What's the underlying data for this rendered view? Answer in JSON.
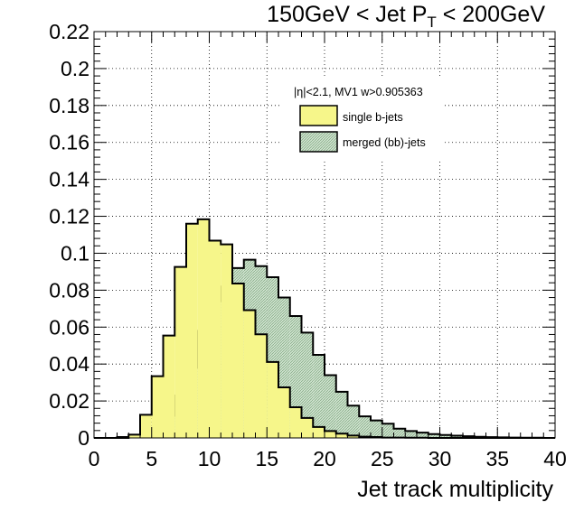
{
  "chart_data": {
    "type": "bar",
    "title": {
      "prefix": "150GeV < Jet P",
      "subscript": "T",
      "suffix": " < 200GeV"
    },
    "xlabel": "Jet track multiplicity",
    "ylabel": "",
    "xlim": [
      0,
      40
    ],
    "ylim": [
      0,
      0.22
    ],
    "xticks": [
      0,
      5,
      10,
      15,
      20,
      25,
      30,
      35,
      40
    ],
    "yticks": [
      0,
      0.02,
      0.04,
      0.06,
      0.08,
      0.1,
      0.12,
      0.14,
      0.16,
      0.18,
      0.2,
      0.22
    ],
    "xtick_labels": [
      "0",
      "5",
      "10",
      "15",
      "20",
      "25",
      "30",
      "35",
      "40"
    ],
    "ytick_labels": [
      "0",
      "0.02",
      "0.04",
      "0.06",
      "0.08",
      "0.1",
      "0.12",
      "0.14",
      "0.16",
      "0.18",
      "0.2",
      "0.22"
    ],
    "grid": true,
    "histogram_style": "step-filled",
    "bin_edges": [
      0,
      1,
      2,
      3,
      4,
      5,
      6,
      7,
      8,
      9,
      10,
      11,
      12,
      13,
      14,
      15,
      16,
      17,
      18,
      19,
      20,
      21,
      22,
      23,
      24,
      25,
      26,
      27,
      28,
      29,
      30,
      31,
      32,
      33,
      34,
      35,
      36,
      37,
      38,
      39,
      40
    ],
    "legend": {
      "header": "|η|<2.1, MV1 w>0.905363",
      "position": "top-right"
    },
    "series": [
      {
        "name": "merged (bb)-jets",
        "fill": "#cfe3cf",
        "hatched": true,
        "values": [
          0,
          0,
          0,
          0.0003,
          0.0012,
          0.0043,
          0.012,
          0.023,
          0.038,
          0.058,
          0.074,
          0.082,
          0.092,
          0.0965,
          0.093,
          0.087,
          0.076,
          0.066,
          0.057,
          0.045,
          0.034,
          0.025,
          0.0175,
          0.0117,
          0.0095,
          0.0077,
          0.005,
          0.0037,
          0.0029,
          0.0021,
          0.0016,
          0.0012,
          0.0009,
          0.0006,
          0.0004,
          0.0003,
          0.0002,
          0.0001,
          0.0001,
          0
        ]
      },
      {
        "name": "single b-jets",
        "fill": "#f6f68a",
        "hatched": false,
        "values": [
          0,
          0,
          0.0005,
          0.0018,
          0.0125,
          0.0334,
          0.0554,
          0.0926,
          0.116,
          0.1184,
          0.1068,
          0.1048,
          0.0836,
          0.0692,
          0.0561,
          0.0411,
          0.0274,
          0.0166,
          0.0108,
          0.0059,
          0.0037,
          0.0023,
          0.0013,
          0.0007,
          0.0005,
          0.0002,
          0.0002,
          0.0001,
          0.0001,
          0,
          0,
          0,
          0,
          0,
          0,
          0,
          0,
          0,
          0,
          0
        ]
      }
    ]
  }
}
